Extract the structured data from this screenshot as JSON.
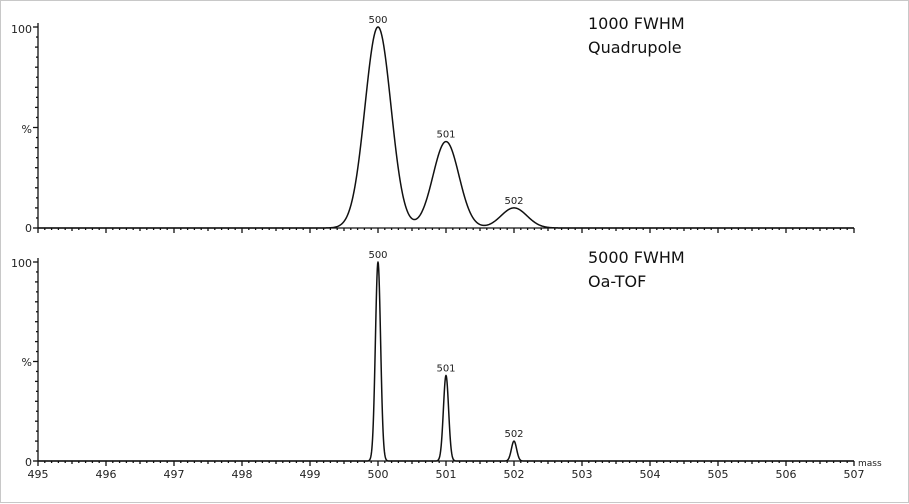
{
  "chart_data": [
    {
      "type": "line",
      "title": "1000 FWHM",
      "subtitle": "Quadrupole",
      "xlabel": "",
      "ylabel": "%",
      "xlim": [
        495,
        507
      ],
      "ylim": [
        0,
        100
      ],
      "y_ticks": [
        "0",
        "%",
        "100"
      ],
      "peaks": [
        {
          "label": "500",
          "x": 500,
          "y": 100
        },
        {
          "label": "501",
          "x": 501,
          "y": 43
        },
        {
          "label": "502",
          "x": 502,
          "y": 10
        }
      ],
      "peak_fwhm": 0.45
    },
    {
      "type": "line",
      "title": "5000 FWHM",
      "subtitle": "Oa-TOF",
      "xlabel": "mass",
      "ylabel": "%",
      "xlim": [
        495,
        507
      ],
      "ylim": [
        0,
        100
      ],
      "x_ticks": [
        "495",
        "496",
        "497",
        "498",
        "499",
        "500",
        "501",
        "502",
        "503",
        "504",
        "505",
        "506",
        "507"
      ],
      "y_ticks": [
        "0",
        "%",
        "100"
      ],
      "peaks": [
        {
          "label": "500",
          "x": 500,
          "y": 100
        },
        {
          "label": "501",
          "x": 501,
          "y": 43
        },
        {
          "label": "502",
          "x": 502,
          "y": 10
        }
      ],
      "peak_fwhm": 0.09
    }
  ],
  "colors": {
    "line": "#111111",
    "background": "#ffffff"
  }
}
